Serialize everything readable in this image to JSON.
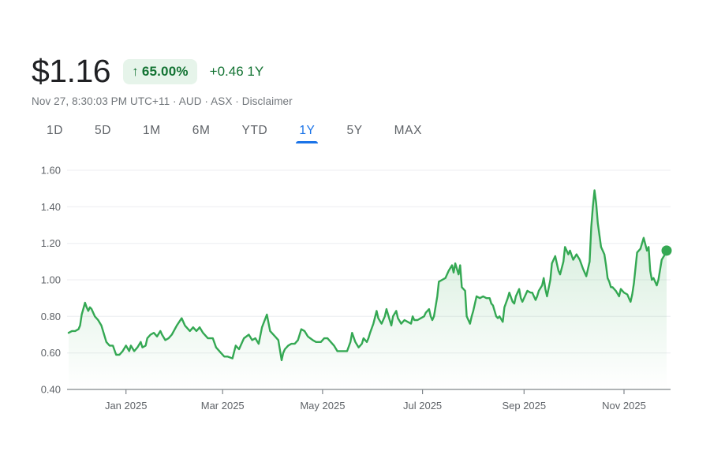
{
  "header": {
    "price": "$1.16",
    "arrow": "↑",
    "change_percent": "65.00%",
    "change_absolute": "+0.46 1Y",
    "meta": "Nov 27, 8:30:03 PM UTC+11 · AUD · ASX · ",
    "disclaimer": "Disclaimer"
  },
  "tabs": {
    "active": "1Y",
    "items": [
      {
        "label": "1D"
      },
      {
        "label": "5D"
      },
      {
        "label": "1M"
      },
      {
        "label": "6M"
      },
      {
        "label": "YTD"
      },
      {
        "label": "1Y"
      },
      {
        "label": "5Y"
      },
      {
        "label": "MAX"
      }
    ]
  },
  "colors": {
    "line": "#34a853",
    "positive_text": "#137333",
    "badge_bg": "#e6f4ea",
    "active_tab": "#1a73e8",
    "grid": "#eceef0",
    "axis": "#80868b",
    "label": "#5f6368",
    "price_text": "#202124",
    "meta_text": "#70757a"
  },
  "chart_data": {
    "type": "area",
    "currency": "AUD",
    "last_price": 1.16,
    "y_axis": {
      "range": [
        0.4,
        1.6
      ],
      "ticks": [
        1.6,
        1.4,
        1.2,
        1.0,
        0.8,
        0.6,
        0.4
      ]
    },
    "x_axis": {
      "range_days": [
        0,
        365
      ],
      "month_ticks": [
        {
          "day": 35,
          "label": "Jan 2025"
        },
        {
          "day": 94,
          "label": "Mar 2025"
        },
        {
          "day": 155,
          "label": "May 2025"
        },
        {
          "day": 216,
          "label": "Jul 2025"
        },
        {
          "day": 278,
          "label": "Sep 2025"
        },
        {
          "day": 339,
          "label": "Nov 2025"
        }
      ]
    },
    "series": [
      {
        "name": "price",
        "points": [
          [
            0,
            0.71
          ],
          [
            2,
            0.72
          ],
          [
            4,
            0.72
          ],
          [
            6,
            0.73
          ],
          [
            7,
            0.75
          ],
          [
            8,
            0.81
          ],
          [
            10,
            0.875
          ],
          [
            11,
            0.85
          ],
          [
            12,
            0.83
          ],
          [
            13,
            0.85
          ],
          [
            14,
            0.84
          ],
          [
            16,
            0.8
          ],
          [
            18,
            0.78
          ],
          [
            20,
            0.75
          ],
          [
            22,
            0.69
          ],
          [
            23,
            0.66
          ],
          [
            25,
            0.64
          ],
          [
            27,
            0.64
          ],
          [
            29,
            0.59
          ],
          [
            31,
            0.59
          ],
          [
            33,
            0.61
          ],
          [
            35,
            0.64
          ],
          [
            37,
            0.61
          ],
          [
            38,
            0.64
          ],
          [
            40,
            0.61
          ],
          [
            42,
            0.63
          ],
          [
            44,
            0.66
          ],
          [
            45,
            0.63
          ],
          [
            47,
            0.64
          ],
          [
            48,
            0.68
          ],
          [
            50,
            0.7
          ],
          [
            52,
            0.71
          ],
          [
            54,
            0.69
          ],
          [
            56,
            0.72
          ],
          [
            57,
            0.7
          ],
          [
            59,
            0.67
          ],
          [
            61,
            0.68
          ],
          [
            63,
            0.7
          ],
          [
            66,
            0.75
          ],
          [
            69,
            0.79
          ],
          [
            71,
            0.75
          ],
          [
            74,
            0.72
          ],
          [
            76,
            0.74
          ],
          [
            78,
            0.72
          ],
          [
            80,
            0.74
          ],
          [
            82,
            0.71
          ],
          [
            85,
            0.68
          ],
          [
            88,
            0.68
          ],
          [
            90,
            0.63
          ],
          [
            93,
            0.6
          ],
          [
            95,
            0.58
          ],
          [
            97,
            0.58
          ],
          [
            100,
            0.57
          ],
          [
            102,
            0.64
          ],
          [
            104,
            0.62
          ],
          [
            107,
            0.68
          ],
          [
            110,
            0.7
          ],
          [
            112,
            0.67
          ],
          [
            114,
            0.68
          ],
          [
            116,
            0.65
          ],
          [
            118,
            0.74
          ],
          [
            121,
            0.81
          ],
          [
            123,
            0.72
          ],
          [
            126,
            0.69
          ],
          [
            128,
            0.67
          ],
          [
            130,
            0.56
          ],
          [
            131,
            0.6
          ],
          [
            132,
            0.62
          ],
          [
            134,
            0.64
          ],
          [
            136,
            0.65
          ],
          [
            138,
            0.65
          ],
          [
            140,
            0.67
          ],
          [
            142,
            0.73
          ],
          [
            144,
            0.72
          ],
          [
            146,
            0.69
          ],
          [
            149,
            0.67
          ],
          [
            151,
            0.66
          ],
          [
            154,
            0.66
          ],
          [
            156,
            0.68
          ],
          [
            158,
            0.68
          ],
          [
            160,
            0.66
          ],
          [
            162,
            0.64
          ],
          [
            164,
            0.61
          ],
          [
            166,
            0.61
          ],
          [
            168,
            0.61
          ],
          [
            170,
            0.61
          ],
          [
            172,
            0.66
          ],
          [
            173,
            0.71
          ],
          [
            175,
            0.66
          ],
          [
            177,
            0.63
          ],
          [
            179,
            0.65
          ],
          [
            180,
            0.68
          ],
          [
            182,
            0.66
          ],
          [
            183,
            0.68
          ],
          [
            184,
            0.71
          ],
          [
            186,
            0.76
          ],
          [
            188,
            0.83
          ],
          [
            189,
            0.79
          ],
          [
            191,
            0.76
          ],
          [
            193,
            0.8
          ],
          [
            194,
            0.84
          ],
          [
            196,
            0.78
          ],
          [
            197,
            0.75
          ],
          [
            198,
            0.8
          ],
          [
            200,
            0.83
          ],
          [
            201,
            0.79
          ],
          [
            203,
            0.76
          ],
          [
            204,
            0.77
          ],
          [
            205,
            0.78
          ],
          [
            207,
            0.77
          ],
          [
            209,
            0.76
          ],
          [
            210,
            0.8
          ],
          [
            211,
            0.78
          ],
          [
            213,
            0.78
          ],
          [
            215,
            0.79
          ],
          [
            217,
            0.8
          ],
          [
            218,
            0.82
          ],
          [
            220,
            0.84
          ],
          [
            221,
            0.8
          ],
          [
            222,
            0.78
          ],
          [
            223,
            0.8
          ],
          [
            225,
            0.91
          ],
          [
            226,
            0.99
          ],
          [
            228,
            1.0
          ],
          [
            230,
            1.01
          ],
          [
            232,
            1.05
          ],
          [
            234,
            1.08
          ],
          [
            235,
            1.04
          ],
          [
            236,
            1.09
          ],
          [
            238,
            1.03
          ],
          [
            239,
            1.08
          ],
          [
            240,
            0.96
          ],
          [
            242,
            0.94
          ],
          [
            243,
            0.8
          ],
          [
            245,
            0.76
          ],
          [
            246,
            0.8
          ],
          [
            247,
            0.83
          ],
          [
            248,
            0.87
          ],
          [
            249,
            0.91
          ],
          [
            251,
            0.9
          ],
          [
            253,
            0.91
          ],
          [
            255,
            0.9
          ],
          [
            257,
            0.9
          ],
          [
            258,
            0.87
          ],
          [
            259,
            0.86
          ],
          [
            261,
            0.8
          ],
          [
            262,
            0.79
          ],
          [
            263,
            0.8
          ],
          [
            265,
            0.77
          ],
          [
            266,
            0.85
          ],
          [
            268,
            0.9
          ],
          [
            269,
            0.93
          ],
          [
            271,
            0.88
          ],
          [
            272,
            0.87
          ],
          [
            273,
            0.91
          ],
          [
            275,
            0.95
          ],
          [
            276,
            0.9
          ],
          [
            277,
            0.88
          ],
          [
            279,
            0.92
          ],
          [
            280,
            0.94
          ],
          [
            282,
            0.93
          ],
          [
            283,
            0.93
          ],
          [
            285,
            0.89
          ],
          [
            286,
            0.91
          ],
          [
            287,
            0.94
          ],
          [
            289,
            0.97
          ],
          [
            290,
            1.01
          ],
          [
            291,
            0.95
          ],
          [
            292,
            0.91
          ],
          [
            294,
            1.0
          ],
          [
            295,
            1.09
          ],
          [
            297,
            1.13
          ],
          [
            299,
            1.05
          ],
          [
            300,
            1.03
          ],
          [
            302,
            1.1
          ],
          [
            303,
            1.18
          ],
          [
            305,
            1.14
          ],
          [
            306,
            1.16
          ],
          [
            308,
            1.11
          ],
          [
            310,
            1.14
          ],
          [
            312,
            1.11
          ],
          [
            314,
            1.06
          ],
          [
            316,
            1.02
          ],
          [
            317,
            1.06
          ],
          [
            318,
            1.1
          ],
          [
            319,
            1.29
          ],
          [
            320,
            1.4
          ],
          [
            321,
            1.49
          ],
          [
            322,
            1.42
          ],
          [
            323,
            1.31
          ],
          [
            325,
            1.18
          ],
          [
            327,
            1.14
          ],
          [
            328,
            1.08
          ],
          [
            329,
            1.01
          ],
          [
            330,
            0.99
          ],
          [
            331,
            0.96
          ],
          [
            332,
            0.96
          ],
          [
            334,
            0.94
          ],
          [
            336,
            0.91
          ],
          [
            337,
            0.95
          ],
          [
            339,
            0.93
          ],
          [
            341,
            0.92
          ],
          [
            342,
            0.9
          ],
          [
            343,
            0.88
          ],
          [
            344,
            0.92
          ],
          [
            345,
            0.98
          ],
          [
            347,
            1.15
          ],
          [
            349,
            1.17
          ],
          [
            351,
            1.23
          ],
          [
            353,
            1.16
          ],
          [
            354,
            1.18
          ],
          [
            355,
            1.05
          ],
          [
            356,
            1.0
          ],
          [
            357,
            1.01
          ],
          [
            359,
            0.97
          ],
          [
            360,
            1.0
          ],
          [
            362,
            1.11
          ],
          [
            364,
            1.14
          ],
          [
            365,
            1.16
          ]
        ]
      }
    ]
  }
}
